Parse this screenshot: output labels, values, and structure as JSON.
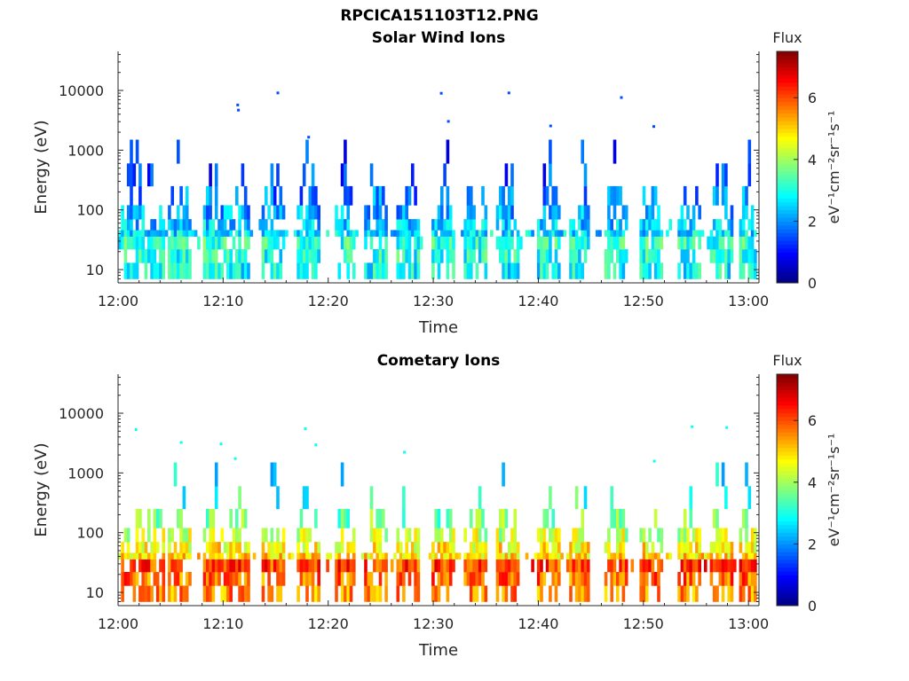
{
  "figure": {
    "title": "RPCICA151103T12.PNG"
  },
  "chart_data": [
    {
      "type": "heatmap",
      "title": "Solar Wind Ions",
      "xlabel": "Time",
      "ylabel": "Energy (eV)",
      "x_ticks": [
        "12:00",
        "12:10",
        "12:20",
        "12:30",
        "12:40",
        "12:50",
        "13:00"
      ],
      "x_range_minutes": [
        0,
        61
      ],
      "y_scale": "log",
      "y_ticks": [
        "10",
        "100",
        "1000",
        "10000"
      ],
      "y_range": [
        6,
        45000
      ],
      "colorbar": {
        "title": "Flux",
        "label": "eV⁻¹cm⁻²sr⁻¹s⁻¹",
        "ticks": [
          "0",
          "2",
          "4",
          "6"
        ],
        "range": [
          0,
          7.5
        ],
        "colormap": "jet"
      },
      "bursts_minutes": [
        1.5,
        3.5,
        5.8,
        9.2,
        11.5,
        14.8,
        18.2,
        21.6,
        24.6,
        27.6,
        31.0,
        34.0,
        37.1,
        41.1,
        43.9,
        47.4,
        50.8,
        54.3,
        57.4,
        60.3
      ],
      "band_flux": 3.0,
      "burst_flux": 2.2,
      "high_energy_flux": 1.2
    },
    {
      "type": "heatmap",
      "title": "Cometary Ions",
      "xlabel": "Time",
      "ylabel": "Energy (eV)",
      "x_ticks": [
        "12:00",
        "12:10",
        "12:20",
        "12:30",
        "12:40",
        "12:50",
        "13:00"
      ],
      "x_range_minutes": [
        0,
        61
      ],
      "y_scale": "log",
      "y_ticks": [
        "10",
        "100",
        "1000",
        "10000"
      ],
      "y_range": [
        6,
        45000
      ],
      "colorbar": {
        "title": "Flux",
        "label": "eV⁻¹cm⁻²sr⁻¹s⁻¹",
        "ticks": [
          "0",
          "2",
          "4",
          "6"
        ],
        "range": [
          0,
          7.5
        ],
        "colormap": "jet"
      },
      "bursts_minutes": [
        1.5,
        3.5,
        5.8,
        9.2,
        11.5,
        14.8,
        18.2,
        21.6,
        24.6,
        27.6,
        31.0,
        34.0,
        37.1,
        41.1,
        43.9,
        47.4,
        50.8,
        54.3,
        57.4,
        60.3
      ],
      "band_flux": 5.8,
      "burst_flux": 4.3,
      "high_energy_flux": 2.6
    }
  ]
}
